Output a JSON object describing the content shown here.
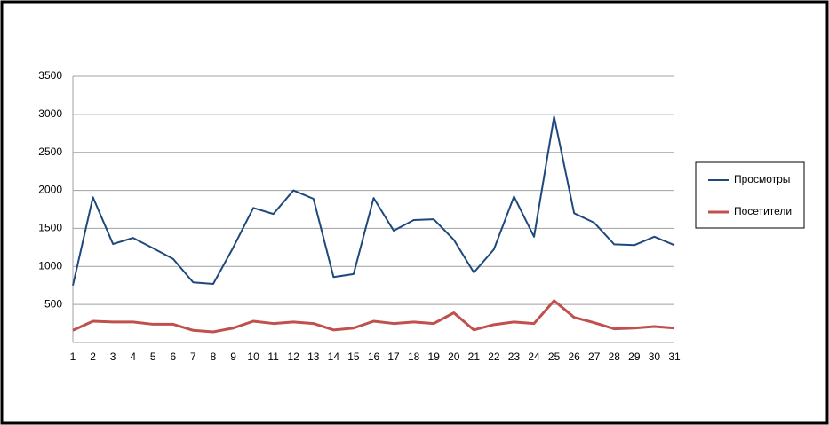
{
  "chart_data": {
    "type": "line",
    "x": [
      1,
      2,
      3,
      4,
      5,
      6,
      7,
      8,
      9,
      10,
      11,
      12,
      13,
      14,
      15,
      16,
      17,
      18,
      19,
      20,
      21,
      22,
      23,
      24,
      25,
      26,
      27,
      28,
      29,
      30,
      31
    ],
    "xlim": [
      1,
      31
    ],
    "xticks": [
      1,
      2,
      3,
      4,
      5,
      6,
      7,
      8,
      9,
      10,
      11,
      12,
      13,
      14,
      15,
      16,
      17,
      18,
      19,
      20,
      21,
      22,
      23,
      24,
      25,
      26,
      27,
      28,
      29,
      30,
      31
    ],
    "ylim": [
      0,
      3500
    ],
    "yticks": [
      500,
      1000,
      1500,
      2000,
      2500,
      3000,
      3500
    ],
    "grid": true,
    "legend": "right",
    "series": [
      {
        "name": "Просмотры",
        "color": "#1f497d",
        "values": [
          750,
          1910,
          1295,
          1375,
          1240,
          1100,
          790,
          770,
          1250,
          1770,
          1690,
          2000,
          1890,
          860,
          900,
          1900,
          1470,
          1610,
          1620,
          1350,
          920,
          1225,
          1920,
          1390,
          2970,
          1700,
          1575,
          1290,
          1280,
          1390,
          1280
        ]
      },
      {
        "name": "Посетители",
        "color": "#c0504d",
        "values": [
          160,
          280,
          270,
          270,
          240,
          240,
          160,
          140,
          190,
          280,
          250,
          270,
          250,
          165,
          190,
          280,
          250,
          270,
          250,
          390,
          165,
          235,
          270,
          250,
          550,
          330,
          260,
          180,
          190,
          210,
          190
        ]
      }
    ]
  }
}
